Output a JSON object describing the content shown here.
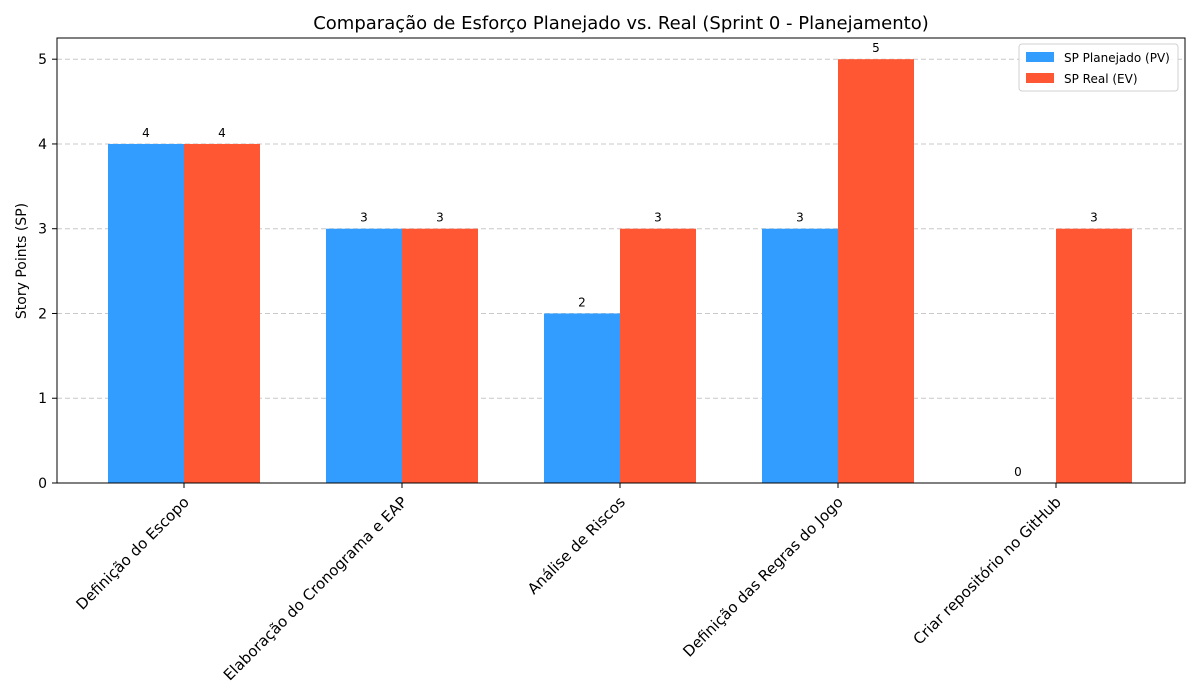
{
  "chart_data": {
    "type": "bar",
    "title": "Comparação de Esforço Planejado vs. Real (Sprint 0 - Planejamento)",
    "xlabel": "",
    "ylabel": "Story Points (SP)",
    "categories": [
      "Definição do Escopo",
      "Elaboração do Cronograma e EAP",
      "Análise de Riscos",
      "Definição das Regras do Jogo",
      "Criar repositório no GitHub"
    ],
    "series": [
      {
        "name": "SP Planejado (PV)",
        "values": [
          4,
          3,
          2,
          3,
          0
        ],
        "color": "#339dff"
      },
      {
        "name": "SP Real (EV)",
        "values": [
          4,
          3,
          3,
          5,
          3
        ],
        "color": "#ff5733"
      }
    ],
    "ylim": [
      0,
      5.25
    ],
    "yticks": [
      0,
      1,
      2,
      3,
      4,
      5
    ],
    "grid": true,
    "legend_position": "top-right",
    "data_labels": true
  }
}
